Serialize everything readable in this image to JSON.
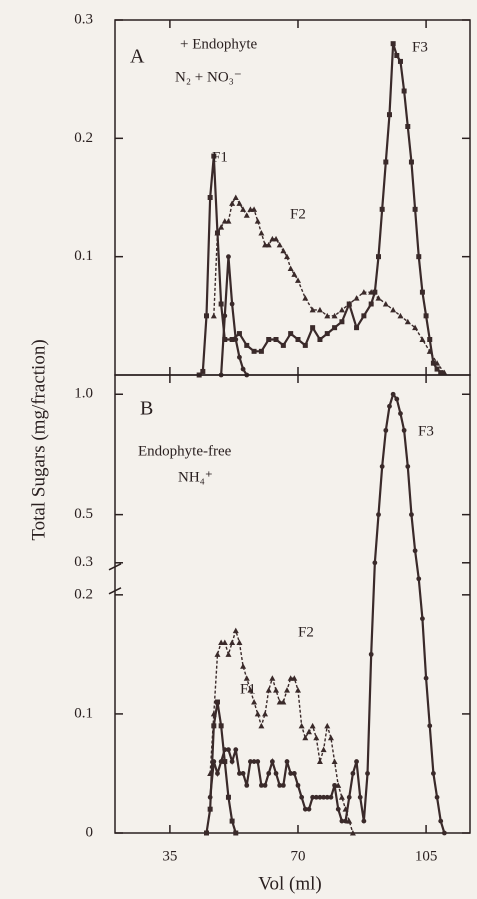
{
  "ylabel": "Total Sugars (mg/fraction)",
  "xlabel": "Vol (ml)",
  "chart_data": [
    {
      "type": "line",
      "panel_label": "A",
      "annotations": [
        "+ Endophyte",
        "N₂ + NO₃⁻",
        "F1",
        "F2",
        "F3"
      ],
      "xlim": [
        20,
        117
      ],
      "xticks": [
        35,
        70,
        105
      ],
      "ylim": [
        0,
        0.3
      ],
      "yticks": [
        0.1,
        0.2,
        0.3
      ],
      "series": [
        {
          "color": "#3a2a2a",
          "marker": "square",
          "x": [
            43,
            44,
            45,
            46,
            47,
            48,
            49,
            50,
            52,
            54,
            56,
            58,
            60,
            62,
            64,
            66,
            68,
            70,
            72,
            74,
            76,
            78,
            80,
            82,
            84,
            86,
            88,
            90,
            91,
            92,
            93,
            94,
            95,
            96,
            97,
            98,
            99,
            100,
            101,
            102,
            103,
            104,
            105,
            106,
            107,
            108,
            109
          ],
          "values": [
            0,
            0.003,
            0.05,
            0.15,
            0.185,
            0.12,
            0.06,
            0.03,
            0.03,
            0.035,
            0.025,
            0.02,
            0.02,
            0.03,
            0.03,
            0.025,
            0.035,
            0.03,
            0.025,
            0.04,
            0.03,
            0.035,
            0.04,
            0.045,
            0.06,
            0.04,
            0.05,
            0.06,
            0.07,
            0.1,
            0.14,
            0.18,
            0.22,
            0.28,
            0.27,
            0.265,
            0.24,
            0.21,
            0.18,
            0.14,
            0.1,
            0.07,
            0.05,
            0.03,
            0.01,
            0.005,
            0.002
          ]
        },
        {
          "color": "#3a2a2a",
          "marker": "triangle",
          "x": [
            47,
            48,
            49,
            50,
            51,
            52,
            53,
            54,
            55,
            56,
            57,
            58,
            59,
            60,
            61,
            62,
            63,
            64,
            65,
            66,
            67,
            68,
            69,
            70,
            72,
            74,
            76,
            78,
            80,
            82,
            84,
            86,
            88,
            90,
            92,
            94,
            96,
            98,
            100,
            102,
            104,
            106,
            108,
            110
          ],
          "values": [
            0.05,
            0.12,
            0.125,
            0.13,
            0.13,
            0.145,
            0.15,
            0.145,
            0.14,
            0.135,
            0.14,
            0.14,
            0.13,
            0.12,
            0.11,
            0.11,
            0.115,
            0.115,
            0.11,
            0.105,
            0.1,
            0.09,
            0.085,
            0.08,
            0.065,
            0.055,
            0.055,
            0.05,
            0.05,
            0.055,
            0.06,
            0.065,
            0.07,
            0.07,
            0.065,
            0.06,
            0.055,
            0.05,
            0.045,
            0.04,
            0.03,
            0.02,
            0.01,
            0.002
          ]
        },
        {
          "color": "#3a2a2a",
          "marker": "circle",
          "x": [
            49,
            50,
            51,
            52,
            53,
            54,
            55,
            56
          ],
          "values": [
            0,
            0.05,
            0.1,
            0.06,
            0.03,
            0.015,
            0.005,
            0
          ]
        }
      ]
    },
    {
      "type": "line",
      "panel_label": "B",
      "annotations": [
        "Endophyte-free",
        "NH₄⁺",
        "F1",
        "F2",
        "F3"
      ],
      "xlim": [
        20,
        117
      ],
      "xticks": [
        35,
        70,
        105
      ],
      "ylim": [
        0,
        1.08
      ],
      "ybreak": [
        0.2,
        0.3
      ],
      "yticks": [
        0,
        0.1,
        0.2,
        0.3,
        0.5,
        {
          "value": 1,
          "label": "1.0"
        }
      ],
      "series": [
        {
          "color": "#3a2a2a",
          "marker": "square",
          "x": [
            45,
            46,
            47,
            48,
            49,
            50,
            51,
            52,
            53
          ],
          "values": [
            0,
            0.02,
            0.09,
            0.11,
            0.09,
            0.06,
            0.03,
            0.01,
            0
          ]
        },
        {
          "color": "#3a2a2a",
          "marker": "triangle",
          "x": [
            46,
            47,
            48,
            49,
            50,
            51,
            52,
            53,
            54,
            55,
            56,
            57,
            58,
            59,
            60,
            61,
            62,
            63,
            64,
            65,
            66,
            67,
            68,
            69,
            70,
            71,
            72,
            73,
            74,
            75,
            76,
            77,
            78,
            79,
            80,
            81,
            82,
            83,
            84,
            85
          ],
          "values": [
            0.05,
            0.1,
            0.15,
            0.16,
            0.16,
            0.15,
            0.16,
            0.17,
            0.16,
            0.14,
            0.13,
            0.12,
            0.11,
            0.1,
            0.09,
            0.1,
            0.12,
            0.13,
            0.12,
            0.11,
            0.11,
            0.12,
            0.13,
            0.13,
            0.12,
            0.09,
            0.08,
            0.085,
            0.09,
            0.08,
            0.06,
            0.07,
            0.09,
            0.08,
            0.06,
            0.04,
            0.03,
            0.02,
            0.01,
            0
          ]
        },
        {
          "color": "#3a2a2a",
          "marker": "circle",
          "x": [
            46,
            47,
            48,
            49,
            50,
            51,
            52,
            53,
            54,
            55,
            56,
            57,
            58,
            59,
            60,
            61,
            62,
            63,
            64,
            65,
            66,
            67,
            68,
            69,
            70,
            71,
            72,
            73,
            74,
            75,
            76,
            77,
            78,
            79,
            80,
            81,
            82,
            83,
            84,
            85,
            86,
            87,
            88,
            89,
            90,
            91,
            92,
            93,
            94,
            95,
            96,
            97,
            98,
            99,
            100,
            101,
            102,
            103,
            104,
            105,
            106,
            107,
            108,
            109,
            110
          ],
          "values": [
            0.03,
            0.06,
            0.05,
            0.06,
            0.07,
            0.07,
            0.06,
            0.07,
            0.05,
            0.05,
            0.04,
            0.06,
            0.06,
            0.06,
            0.04,
            0.04,
            0.05,
            0.06,
            0.05,
            0.04,
            0.04,
            0.06,
            0.05,
            0.05,
            0.04,
            0.03,
            0.02,
            0.02,
            0.03,
            0.03,
            0.03,
            0.03,
            0.03,
            0.03,
            0.04,
            0.02,
            0.01,
            0.01,
            0.03,
            0.05,
            0.06,
            0.03,
            0.01,
            0.05,
            0.15,
            0.3,
            0.5,
            0.7,
            0.85,
            0.95,
            1.0,
            0.98,
            0.92,
            0.85,
            0.7,
            0.5,
            0.35,
            0.25,
            0.18,
            0.13,
            0.09,
            0.05,
            0.03,
            0.01,
            0
          ]
        }
      ]
    }
  ]
}
